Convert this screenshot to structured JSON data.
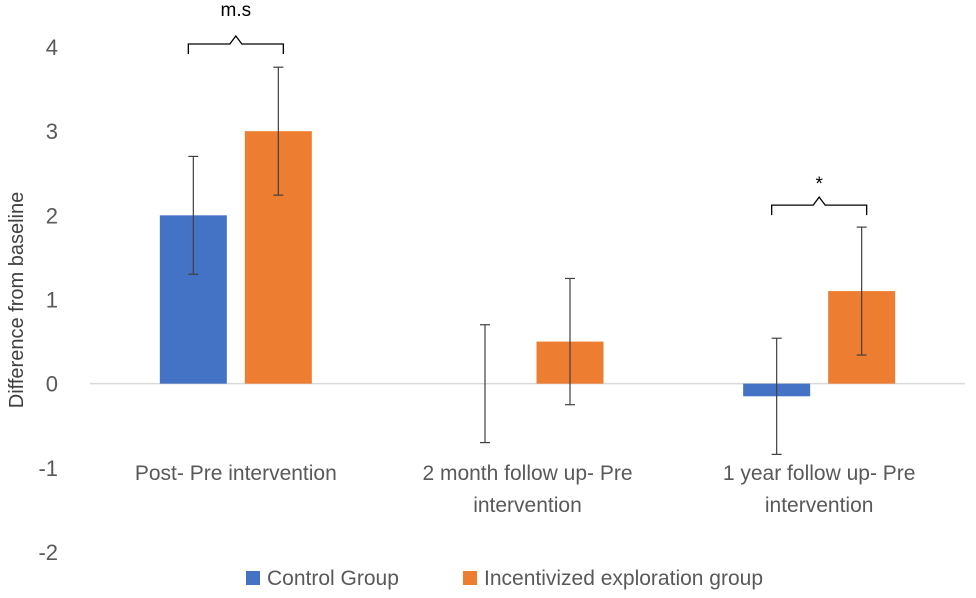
{
  "chart_data": {
    "type": "bar",
    "title": "",
    "xlabel": "",
    "ylabel": "Difference from baseline",
    "ylim": [
      -2,
      4
    ],
    "yticks": [
      -2,
      -1,
      0,
      1,
      2,
      3,
      4
    ],
    "grid": false,
    "legend_position": "bottom",
    "categories": [
      [
        "Post- Pre intervention"
      ],
      [
        "2 month follow up- Pre",
        "intervention"
      ],
      [
        "1 year follow up- Pre",
        "intervention"
      ]
    ],
    "series": [
      {
        "name": "Control Group",
        "color": "#4472C4",
        "values": [
          2.0,
          0.0,
          -0.15
        ],
        "error": [
          0.7,
          0.7,
          0.69
        ]
      },
      {
        "name": "Incentivized exploration group",
        "color": "#ED7D31",
        "values": [
          3.0,
          0.5,
          1.1
        ],
        "error": [
          0.76,
          0.75,
          0.76
        ]
      }
    ],
    "annotations": [
      {
        "category_index": 0,
        "label": "m.s"
      },
      {
        "category_index": 2,
        "label": "*"
      }
    ]
  }
}
